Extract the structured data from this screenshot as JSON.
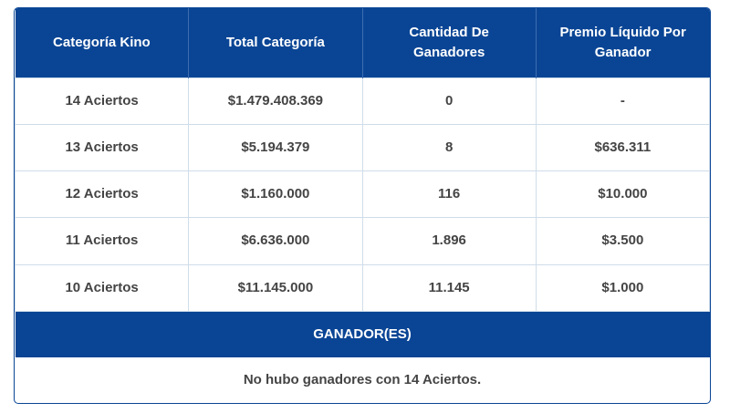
{
  "table": {
    "columns": [
      "Categoría Kino",
      "Total Categoría",
      "Cantidad De Ganadores",
      "Premio Líquido Por Ganador"
    ],
    "rows": [
      [
        "14 Aciertos",
        "$1.479.408.369",
        "0",
        "-"
      ],
      [
        "13 Aciertos",
        "$5.194.379",
        "8",
        "$636.311"
      ],
      [
        "12 Aciertos",
        "$1.160.000",
        "116",
        "$10.000"
      ],
      [
        "11 Aciertos",
        "$6.636.000",
        "1.896",
        "$3.500"
      ],
      [
        "10 Aciertos",
        "$11.145.000",
        "11.145",
        "$1.000"
      ]
    ],
    "winners_title": "GANADOR(ES)",
    "winners_note": "No hubo ganadores con 14 Aciertos."
  }
}
